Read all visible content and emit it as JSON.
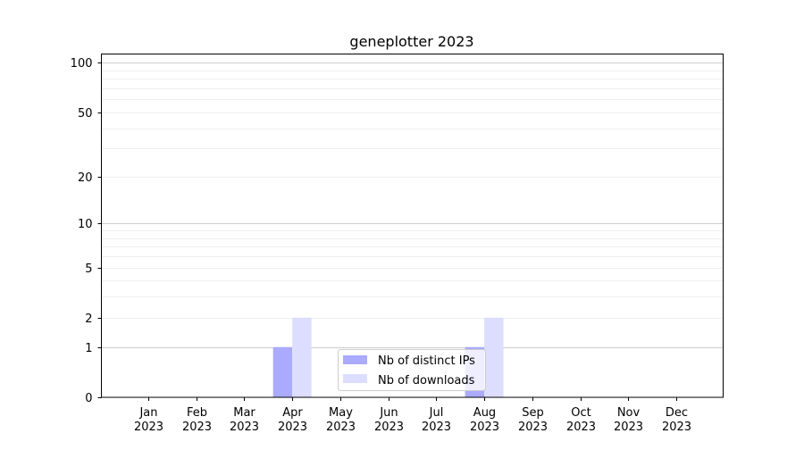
{
  "chart_data": {
    "type": "bar",
    "title": "geneplotter 2023",
    "xlabel": "",
    "ylabel": "",
    "yscale": "log(y+1)",
    "ylim": [
      0,
      113
    ],
    "grid": true,
    "legend_placement": "lower-center",
    "categories": [
      "Jan\n2023",
      "Feb\n2023",
      "Mar\n2023",
      "Apr\n2023",
      "May\n2023",
      "Jun\n2023",
      "Jul\n2023",
      "Aug\n2023",
      "Sep\n2023",
      "Oct\n2023",
      "Nov\n2023",
      "Dec\n2023"
    ],
    "y_ticks": [
      0,
      1,
      2,
      5,
      10,
      20,
      50,
      100
    ],
    "series": [
      {
        "name": "Nb of distinct IPs",
        "color": "#aaaaff",
        "values": [
          0,
          0,
          0,
          1,
          0,
          0,
          0,
          1,
          0,
          0,
          0,
          0
        ]
      },
      {
        "name": "Nb of downloads",
        "color": "#ddddff",
        "values": [
          0,
          0,
          0,
          2,
          0,
          0,
          0,
          2,
          0,
          0,
          0,
          0
        ]
      }
    ]
  }
}
